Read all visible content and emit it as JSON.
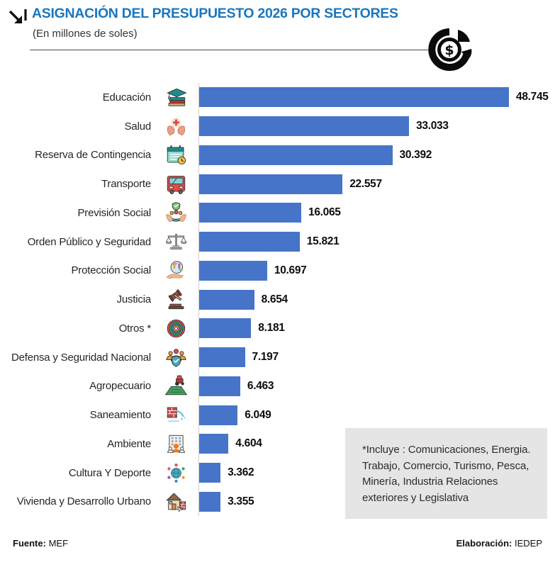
{
  "header": {
    "title": "ASIGNACIÓN DEL PRESUPUESTO 2026 POR SECTORES",
    "subtitle": "(En millones de soles)",
    "title_color": "#1977BE",
    "corner_icon": "arrow-down-right-icon",
    "decoration_icon": "coin-pie-chart-icon"
  },
  "chart_data": {
    "type": "bar",
    "orientation": "horizontal",
    "title": "Asignación del presupuesto 2026 por sectores",
    "unit": "millones de soles",
    "bar_color": "#4674C8",
    "axis_color": "#CFCFCF",
    "xlim": [
      0,
      50000
    ],
    "grid": false,
    "legend": "none",
    "categories": [
      "Educación",
      "Salud",
      "Reserva de Contingencia",
      "Transporte",
      "Previsión Social",
      "Orden Público y Seguridad",
      "Protección Social",
      "Justicia",
      "Otros *",
      "Defensa y Seguridad Nacional",
      "Agropecuario",
      "Saneamiento",
      "Ambiente",
      "Cultura Y Deporte",
      "Vivienda y Desarrollo Urbano"
    ],
    "values": [
      48745,
      33033,
      30392,
      22557,
      16065,
      15821,
      10697,
      8654,
      8181,
      7197,
      6463,
      6049,
      4604,
      3362,
      3355
    ],
    "value_labels": [
      "48.745",
      "33.033",
      "30.392",
      "22.557",
      "16.065",
      "15.821",
      "10.697",
      "8.654",
      "8.181",
      "7.197",
      "6.463",
      "6.049",
      "4.604",
      "3.362",
      "3.355"
    ],
    "icons": [
      "graduation-books-icon",
      "hands-medical-cross-icon",
      "calendar-clock-icon",
      "bus-icon",
      "family-shield-hands-icon",
      "scales-of-justice-icon",
      "hand-globe-people-icon",
      "gavel-icon",
      "target-rings-icon",
      "people-shield-icon",
      "tractor-field-icon",
      "brick-wall-water-icon",
      "building-people-icon",
      "globe-people-icon",
      "house-brick-wall-icon"
    ]
  },
  "note": {
    "text": "*Incluye :  Comunicaciones, Energia. Trabajo, Comercio, Turismo, Pesca, Minería, Industria Relaciones exteriores y Legislativa",
    "background": "#E6E5E5"
  },
  "footer": {
    "source_label": "Fuente:",
    "source_value": " MEF",
    "elaboration_label": "Elaboración:",
    "elaboration_value": " IEDEP"
  }
}
